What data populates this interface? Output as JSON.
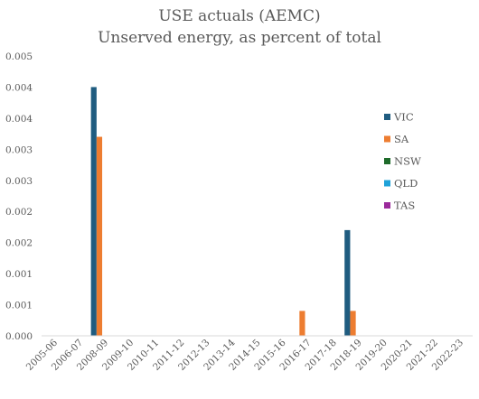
{
  "chart_data": {
    "type": "bar",
    "title": "USE actuals (AEMC)",
    "subtitle": "Unserved energy, as percent of total",
    "xlabel": "",
    "ylabel": "",
    "categories": [
      "2005-06",
      "2006-07",
      "2008-09",
      "2009-10",
      "2010-11",
      "2011-12",
      "2012-13",
      "2013-14",
      "2014-15",
      "2015-16",
      "2016-17",
      "2017-18",
      "2018-19",
      "2019-20",
      "2020-21",
      "2021-22",
      "2022-23"
    ],
    "ylim": [
      0,
      0.0045
    ],
    "y_ticks": [
      0,
      0.0005,
      0.001,
      0.0015,
      0.002,
      0.0025,
      0.003,
      0.0035,
      0.004,
      0.0045
    ],
    "y_tick_labels": [
      "0.000",
      "0.001",
      "0.001",
      "0.002",
      "0.002",
      "0.003",
      "0.003",
      "0.004",
      "0.004",
      "0.005"
    ],
    "grid": false,
    "legend_position": "right",
    "series": [
      {
        "name": "VIC",
        "color": "#1F5C80",
        "values": [
          0,
          0,
          0.004,
          0,
          0,
          0,
          0,
          0,
          0,
          0,
          0,
          0,
          0.0017,
          0,
          0,
          0,
          0
        ]
      },
      {
        "name": "SA",
        "color": "#ED7D31",
        "values": [
          0,
          0,
          0.0032,
          0,
          0,
          0,
          0,
          0,
          0,
          0,
          0.0004,
          0,
          0.0004,
          0,
          0,
          0,
          0
        ]
      },
      {
        "name": "NSW",
        "color": "#1E6B2A",
        "values": [
          0,
          0,
          0,
          0,
          0,
          0,
          0,
          0,
          0,
          0,
          0,
          0,
          0,
          0,
          0,
          0,
          0
        ]
      },
      {
        "name": "QLD",
        "color": "#1FA2D9",
        "values": [
          0,
          0,
          0,
          0,
          0,
          0,
          0,
          0,
          0,
          0,
          0,
          0,
          0,
          0,
          0,
          0,
          0
        ]
      },
      {
        "name": "TAS",
        "color": "#9B2A9B",
        "values": [
          0,
          0,
          0,
          0,
          0,
          0,
          0,
          0,
          0,
          0,
          0,
          0,
          0,
          0,
          0,
          0,
          0
        ]
      }
    ]
  }
}
